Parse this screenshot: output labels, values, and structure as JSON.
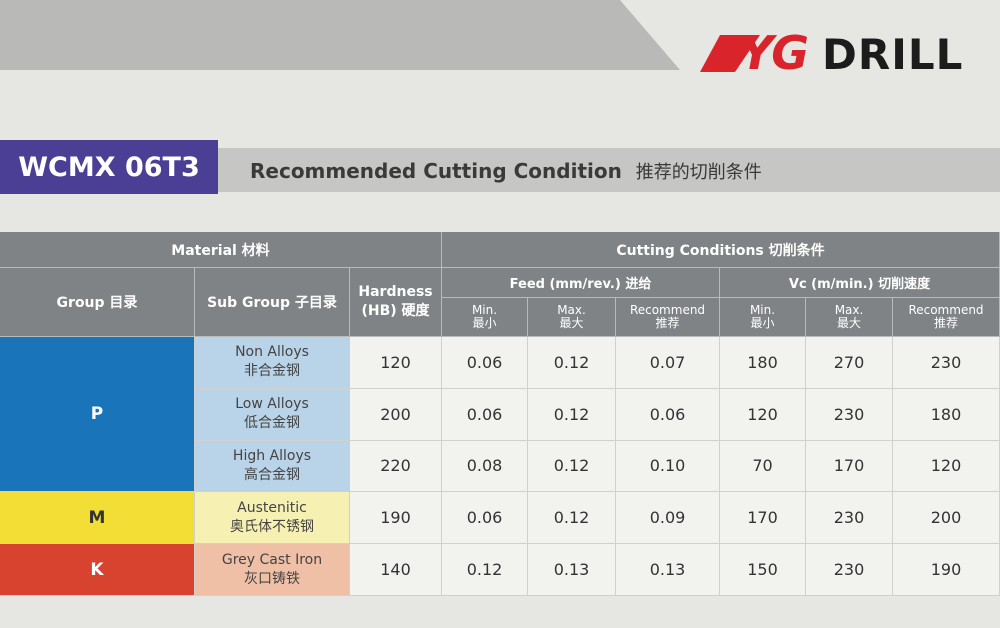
{
  "brand": {
    "mark": "YG",
    "name": "DRILL"
  },
  "title": {
    "code": "WCMX 06T3",
    "heading": "Recommended Cutting Condition",
    "heading_cn": "推荐的切削条件"
  },
  "table": {
    "header_groups": [
      "Material 材料",
      "Cutting Conditions 切削条件"
    ],
    "columns": [
      [
        "Group 目录"
      ],
      [
        "Sub Group 子目录"
      ],
      [
        "Hardness",
        "(HB) 硬度"
      ]
    ],
    "subgroups": [
      "Feed (mm/rev.) 进给",
      "Vc (m/min.) 切削速度"
    ],
    "subcolumns": [
      [
        "Min.",
        "最小"
      ],
      [
        "Max.",
        "最大"
      ],
      [
        "Recommend",
        "推荐"
      ]
    ],
    "groups": [
      {
        "name": "P",
        "rows": [
          {
            "sub": [
              "Non Alloys",
              "非合金钢"
            ],
            "values": [
              "120",
              "0.06",
              "0.12",
              "0.07",
              "180",
              "270",
              "230"
            ]
          },
          {
            "sub": [
              "Low Alloys",
              "低合金钢"
            ],
            "values": [
              "200",
              "0.06",
              "0.12",
              "0.06",
              "120",
              "230",
              "180"
            ]
          },
          {
            "sub": [
              "High Alloys",
              "高合金钢"
            ],
            "values": [
              "220",
              "0.08",
              "0.12",
              "0.10",
              "70",
              "170",
              "120"
            ]
          }
        ]
      },
      {
        "name": "M",
        "rows": [
          {
            "sub": [
              "Austenitic",
              "奥氏体不锈钢"
            ],
            "values": [
              "190",
              "0.06",
              "0.12",
              "0.09",
              "170",
              "230",
              "200"
            ]
          }
        ]
      },
      {
        "name": "K",
        "rows": [
          {
            "sub": [
              "Grey Cast Iron",
              "灰口铸铁"
            ],
            "values": [
              "140",
              "0.12",
              "0.13",
              "0.13",
              "150",
              "230",
              "190"
            ]
          }
        ]
      }
    ]
  }
}
